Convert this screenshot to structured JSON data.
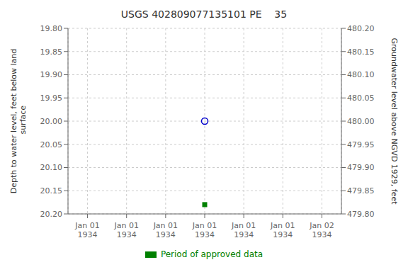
{
  "chart_data": {
    "type": "scatter",
    "title": "USGS 402809077135101 PE    35",
    "y_label": "Depth to water level, feet below land\n surface",
    "y2_label": "Groundwater level above NGVD 1929, feet",
    "categories": [
      "Jan 01\n1934",
      "Jan 01\n1934",
      "Jan 01\n1934",
      "Jan 01\n1934",
      "Jan 01\n1934",
      "Jan 01\n1934",
      "Jan 02\n1934"
    ],
    "series": [
      {
        "color": "#0000cc",
        "marker": "open_circle",
        "values": [
          null,
          null,
          null,
          20.0,
          null,
          null,
          null
        ]
      },
      {
        "name": "Period of approved data",
        "color": "#008000",
        "marker": "square",
        "values": [
          null,
          null,
          null,
          20.18,
          null,
          null,
          null
        ]
      }
    ],
    "ylim": [
      20.2,
      19.8
    ],
    "yticks": [
      {
        "value": 19.8,
        "label": "19.80"
      },
      {
        "value": 19.85,
        "label": "19.85"
      },
      {
        "value": 19.9,
        "label": "19.90"
      },
      {
        "value": 19.95,
        "label": "19.95"
      },
      {
        "value": 20.0,
        "label": "20.00"
      },
      {
        "value": 20.05,
        "label": "20.05"
      },
      {
        "value": 20.1,
        "label": "20.10"
      },
      {
        "value": 20.15,
        "label": "20.15"
      },
      {
        "value": 20.2,
        "label": "20.20"
      }
    ],
    "y2lim": [
      479.8,
      480.2
    ],
    "y2ticks": [
      {
        "value": 480.2,
        "label": "480.20"
      },
      {
        "value": 480.15,
        "label": "480.15"
      },
      {
        "value": 480.1,
        "label": "480.10"
      },
      {
        "value": 480.05,
        "label": "480.05"
      },
      {
        "value": 480.0,
        "label": "480.00"
      },
      {
        "value": 479.95,
        "label": "479.95"
      },
      {
        "value": 479.9,
        "label": "479.90"
      },
      {
        "value": 479.85,
        "label": "479.85"
      },
      {
        "value": 479.8,
        "label": "479.80"
      }
    ],
    "grid": true,
    "legend": "bottom"
  }
}
